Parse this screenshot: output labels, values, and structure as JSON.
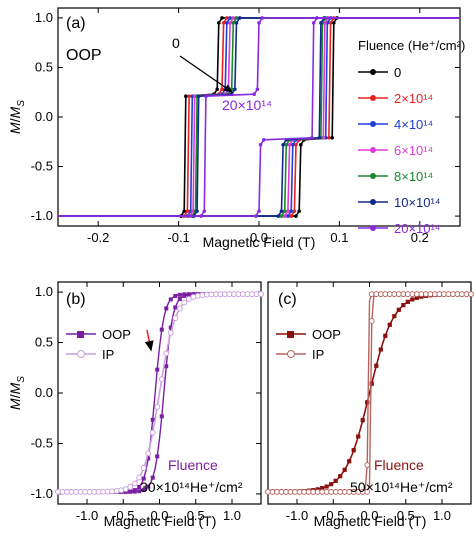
{
  "chart_data": [
    {
      "panel": "(a)",
      "type": "line",
      "xlabel": "Magnetic Field (T)",
      "ylabel": "M/M_S",
      "xlim": [
        -0.25,
        0.25
      ],
      "ylim": [
        -1.1,
        1.1
      ],
      "xticks": [
        "-0.2",
        "-0.1",
        "0.0",
        "0.1",
        "0.2"
      ],
      "yticks": [
        "-1.0",
        "-0.5",
        "0.0",
        "0.5",
        "1.0"
      ],
      "annotations": {
        "oop_label": "OOP",
        "arrow_start_label": "0",
        "arrow_end_label": "20×10¹⁴"
      },
      "legend_title": "Fluence (He⁺/cm²)",
      "legend_placement": "right",
      "series": [
        {
          "name": "0",
          "color": "#000000",
          "hc_down": -0.09,
          "hc_up": 0.09,
          "plateau_down": [
            -0.093,
            -0.05
          ],
          "plateau_up": [
            0.05,
            0.093
          ],
          "plateau_level": 0.23
        },
        {
          "name": "2×10¹⁴",
          "color": "#e8231f",
          "hc_down": -0.086,
          "hc_up": 0.086,
          "plateau_down": [
            -0.089,
            -0.044
          ],
          "plateau_up": [
            0.044,
            0.089
          ],
          "plateau_level": 0.23
        },
        {
          "name": "4×10¹⁴",
          "color": "#1f3ed6",
          "hc_down": -0.082,
          "hc_up": 0.082,
          "plateau_down": [
            -0.085,
            -0.04
          ],
          "plateau_up": [
            0.04,
            0.085
          ],
          "plateau_level": 0.23
        },
        {
          "name": "6×10¹⁴",
          "color": "#e03ad8",
          "hc_down": -0.078,
          "hc_up": 0.078,
          "plateau_down": [
            -0.082,
            -0.036
          ],
          "plateau_up": [
            0.036,
            0.082
          ],
          "plateau_level": 0.23
        },
        {
          "name": "8×10¹⁴",
          "color": "#17892c",
          "hc_down": -0.074,
          "hc_up": 0.074,
          "plateau_down": [
            -0.079,
            -0.032
          ],
          "plateau_up": [
            0.032,
            0.079
          ],
          "plateau_level": 0.23
        },
        {
          "name": "10×10¹⁴",
          "color": "#102a8c",
          "hc_down": -0.07,
          "hc_up": 0.07,
          "plateau_down": [
            -0.077,
            -0.028
          ],
          "plateau_up": [
            0.028,
            0.077
          ],
          "plateau_level": 0.23
        },
        {
          "name": "20×10¹⁴",
          "color": "#8a2be2",
          "hc_down": -0.06,
          "hc_up": 0.06,
          "plateau_down": [
            -0.068,
            0.0
          ],
          "plateau_up": [
            0.0,
            0.068
          ],
          "plateau_level": 0.23
        }
      ]
    },
    {
      "panel": "(b)",
      "type": "line",
      "xlabel": "Magnetic Field (T)",
      "ylabel": "M/M_S",
      "xlim": [
        -1.4,
        1.4
      ],
      "ylim": [
        -1.1,
        1.1
      ],
      "xticks": [
        "-1.0",
        "-0.5",
        "0.0",
        "0.5",
        "1.0"
      ],
      "yticks": [
        "-1.0",
        "-0.5",
        "0.0",
        "0.5",
        "1.0"
      ],
      "annotations": {
        "fluence_label": "Fluence",
        "fluence_value": "30×10¹⁴He⁺/cm²"
      },
      "legend_placement": "top-left",
      "series": [
        {
          "name": "OOP",
          "color": "#7b1fa2",
          "marker": "filled-square",
          "hc": 0.06,
          "width": 0.12
        },
        {
          "name": "IP",
          "color": "#c9a0dc",
          "marker": "open-circle",
          "hc": 0.0,
          "width": 0.22
        }
      ]
    },
    {
      "panel": "(c)",
      "type": "line",
      "xlabel": "Magnetic Field (T)",
      "ylabel": "",
      "xlim": [
        -1.4,
        1.4
      ],
      "ylim": [
        -1.1,
        1.1
      ],
      "xticks": [
        "-1.0",
        "-0.5",
        "0.0",
        "0.5",
        "1.0"
      ],
      "annotations": {
        "fluence_label": "Fluence",
        "fluence_value": "50×10¹⁴He⁺/cm²"
      },
      "legend_placement": "top-left",
      "series": [
        {
          "name": "OOP",
          "color": "#8b1010",
          "marker": "filled-square",
          "hc": 0.0,
          "width": 0.33
        },
        {
          "name": "IP",
          "color": "#b5655e",
          "marker": "open-circle",
          "hc": 0.02,
          "width": 0.012
        }
      ]
    }
  ],
  "labels": {
    "panel_a": "(a)",
    "panel_b": "(b)",
    "panel_c": "(c)",
    "xlabel": "Magnetic Field (T)",
    "ylabel_main": "M",
    "ylabel_slash": "/",
    "ylabel_sub": "S"
  }
}
